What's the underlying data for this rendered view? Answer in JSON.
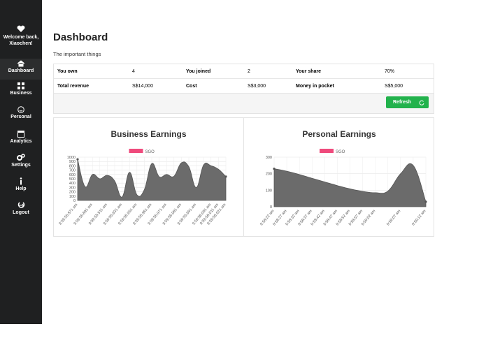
{
  "sidebar": {
    "welcome": "Welcome back, Xiaochen!",
    "items": [
      "Dashboard",
      "Business",
      "Personal",
      "Analytics",
      "Settings",
      "Help",
      "Logout"
    ]
  },
  "header": {
    "title": "Dashboard",
    "subtitle": "The important things"
  },
  "summary": {
    "rows": [
      [
        "You own",
        "4",
        "You joined",
        "2",
        "Your share",
        "70%"
      ],
      [
        "Total revenue",
        "S$14,000",
        "Cost",
        "S$3,000",
        "Money in pocket",
        "S$5,000"
      ]
    ],
    "button": "Refresh"
  },
  "chart_data": [
    {
      "type": "area",
      "title": "Business Earnings",
      "categories": [
        "9:59:55.871 am",
        null,
        "9:59:55.891 am",
        null,
        "9:59:55.911 am",
        null,
        "9:59:55.931 am",
        null,
        "9:59:55.951 am",
        null,
        "9:59:55.961 am",
        null,
        "9:59:55.971 am",
        null,
        "9:59:55.981 am",
        null,
        "9:59:55.991 am",
        null,
        "9:59:56.001 am",
        "9:59:56.011 am",
        "9:59:56.021 am"
      ],
      "series": [
        {
          "name": "SGO",
          "color": "#ef4a7c",
          "values": [
            950,
            320,
            600,
            500,
            580,
            450,
            80,
            650,
            130,
            250,
            850,
            550,
            600,
            560,
            870,
            780,
            300,
            820,
            800,
            720,
            550
          ]
        }
      ],
      "area_color": "#6b6b6b",
      "ylim": [
        0,
        1000
      ],
      "yticks": [
        0,
        100,
        200,
        300,
        400,
        500,
        600,
        700,
        800,
        900,
        1000
      ],
      "grid": true
    },
    {
      "type": "area",
      "title": "Personal Earnings",
      "categories": [
        "9:58:22 am",
        "9:58:27 am",
        "9:58:32 am",
        "9:58:37 am",
        "9:58:42 am",
        "9:58:47 am",
        "9:58:52 am",
        "9:58:57 am",
        "9:59:02 am",
        null,
        "9:59:07 am",
        null,
        "9:59:12 am"
      ],
      "series": [
        {
          "name": "SGO",
          "color": "#ef4a7c",
          "values": [
            230,
            215,
            195,
            172,
            150,
            128,
            108,
            93,
            85,
            95,
            200,
            250,
            30
          ]
        }
      ],
      "area_color": "#6b6b6b",
      "ylim": [
        0,
        300
      ],
      "yticks": [
        0,
        100,
        200,
        300
      ],
      "grid": true
    }
  ]
}
